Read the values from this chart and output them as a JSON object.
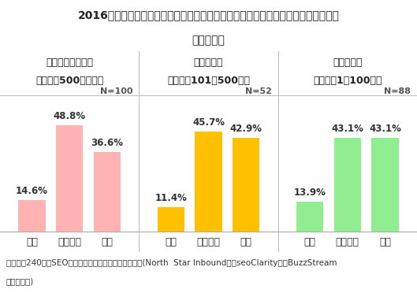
{
  "title_line1": "2016年と対比して、リンクビルディングにどの程度の予算支出を予定しているか？",
  "title_line2": "企業規模別",
  "groups": [
    {
      "name_line1": "エンタープライズ",
      "name_line2": "（従業員500人以上）",
      "n_label": "N=100",
      "values": [
        14.6,
        48.8,
        36.6
      ],
      "bar_color": "#FFB3B3"
    },
    {
      "name_line1": "中規模企業",
      "name_line2": "（従業員101～500人）",
      "n_label": "N=52",
      "values": [
        11.4,
        45.7,
        42.9
      ],
      "bar_color": "#FFC000"
    },
    {
      "name_line1": "小規模企業",
      "name_line2": "（従業員1～100人）",
      "n_label": "N=88",
      "values": [
        13.9,
        43.1,
        43.1
      ],
      "bar_color": "#90EE90"
    }
  ],
  "x_labels": [
    "減額",
    "ほぼ同額",
    "増額"
  ],
  "title_bg_color": "#D4E8F4",
  "footer_bg_color": "#DCDCDC",
  "footer_text_line1": "ソース：240名のSEOプロフェッショナルに対する調査(North  Star Inbound社、seoClarity社、BuzzStream",
  "footer_text_line2": "社にて実施)",
  "ylim_max": 55,
  "title_fontsize": 10,
  "group_header_fontsize": 9,
  "n_label_fontsize": 8,
  "bar_label_fontsize": 8.5,
  "x_label_fontsize": 9,
  "footer_fontsize": 7.5,
  "divider_color": "#BBBBBB",
  "bar_bottom_line_color": "#AAAAAA"
}
